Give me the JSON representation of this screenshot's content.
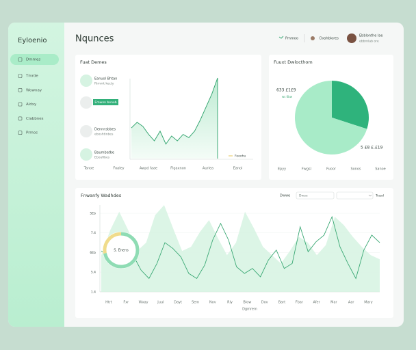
{
  "sidebar": {
    "logo": "Eyloenio",
    "nav": [
      "Dmmes",
      "Tmrde",
      "Wownay",
      "Aldxy",
      "Clabbnes",
      "Prmos"
    ]
  },
  "header": {
    "title": "Nqunces",
    "links": [
      "Pmmoo",
      "Dxshblores"
    ],
    "user": {
      "name": "Ebblonthe lae",
      "subtitle": "ebbrnlab ore"
    }
  },
  "fuat_demes": {
    "title": "Fuat Demes",
    "items": [
      {
        "title": "Eanuol Bhtan",
        "subtitle": "Rimmt kecty"
      },
      {
        "title": "Dennnsbbes",
        "subtitle": "eboshtinbes"
      },
      {
        "title": "Baumbatbe",
        "subtitle": "Eboufibes"
      }
    ],
    "button": "Emwnn beneb",
    "legend": "Feeohu",
    "x_labels": [
      "Tanoe",
      "Foaley",
      "Awpd faae",
      "Flgaxnon",
      "Aurlea",
      "Eanoi"
    ],
    "chart": {
      "type": "line",
      "color": "#3aa874",
      "values": [
        38,
        45,
        40,
        30,
        22,
        34,
        18,
        28,
        22,
        30,
        26,
        34,
        48,
        64,
        80,
        100
      ]
    }
  },
  "distribution": {
    "title": "Fuuxt Dwlocthom",
    "annotations": [
      "633 £1£9",
      "ws 6bw",
      "5 £8 £.£19"
    ],
    "x_labels": [
      "Epyy",
      "Fwgsl",
      "Fuoor",
      "Sonos",
      "Sanoe"
    ],
    "chart": {
      "type": "pie",
      "values": [
        30,
        70
      ],
      "colors": [
        "#2fb37c",
        "#a8ebc8"
      ]
    }
  },
  "trends": {
    "title": "Fnwanfy Wadhdes",
    "controls": {
      "label": "Dwwe",
      "input": "Dwae",
      "select_label": "Trasd"
    },
    "y_labels": [
      "5Eb",
      "7.4",
      "6Eb",
      "5.4",
      "1.4"
    ],
    "x_labels": [
      "Htrt",
      "Fxr",
      "Wxay",
      "Juul",
      "Dayt",
      "Sem",
      "Nov",
      "Rly",
      "Blow",
      "Dov",
      "Bart",
      "Fbar",
      "Afer",
      "Mar",
      "Aar",
      "Mary"
    ],
    "x_title": "Dgmrem",
    "chart": {
      "type": "line",
      "series": [
        {
          "name": "area",
          "color": "#d6f3e2",
          "values": [
            40,
            70,
            92,
            70,
            45,
            55,
            88,
            100,
            72,
            45,
            50,
            68,
            82,
            60,
            40,
            55,
            92,
            72,
            50,
            40,
            30,
            45,
            62,
            55,
            40,
            52,
            86,
            76,
            62,
            50,
            40,
            35
          ]
        },
        {
          "name": "line",
          "color": "#3aa874",
          "values": [
            45,
            40,
            58,
            66,
            40,
            22,
            12,
            30,
            55,
            48,
            38,
            18,
            12,
            28,
            58,
            78,
            58,
            26,
            18,
            24,
            14,
            34,
            46,
            24,
            30,
            74,
            44,
            56,
            64,
            86,
            50,
            30,
            12,
            46,
            64,
            55
          ]
        }
      ]
    },
    "donut": {
      "label": "S. Enens",
      "values": [
        72,
        28
      ],
      "colors": [
        "#8fdcb4",
        "#f0dc8c"
      ]
    }
  }
}
